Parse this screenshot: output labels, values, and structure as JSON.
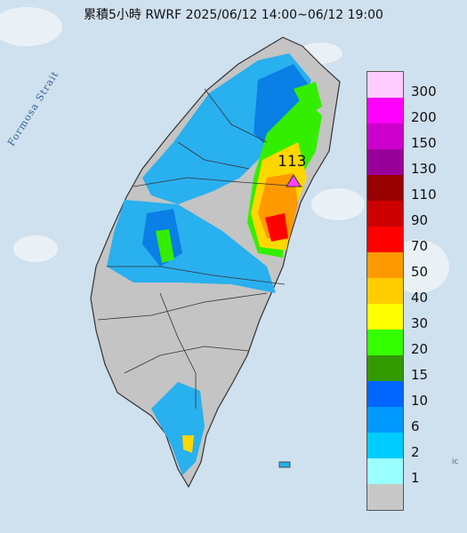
{
  "title": "累積5小時 RWRF 2025/06/12 14:00~06/12 19:00",
  "strait_label": "Formosa Strait",
  "max_station": {
    "value": "113",
    "marker_icon": "triangle-icon",
    "marker_color": "#ff44ff"
  },
  "edge_label": "ic",
  "legend": {
    "levels": [
      {
        "label": "300",
        "color": "#ffccff"
      },
      {
        "label": "200",
        "color": "#ff00ff"
      },
      {
        "label": "150",
        "color": "#cc00cc"
      },
      {
        "label": "130",
        "color": "#990099"
      },
      {
        "label": "110",
        "color": "#990000"
      },
      {
        "label": "90",
        "color": "#cc0000"
      },
      {
        "label": "70",
        "color": "#ff0000"
      },
      {
        "label": "50",
        "color": "#ff9900"
      },
      {
        "label": "40",
        "color": "#ffcc00"
      },
      {
        "label": "30",
        "color": "#ffff00"
      },
      {
        "label": "20",
        "color": "#33ff00"
      },
      {
        "label": "15",
        "color": "#339900"
      },
      {
        "label": "10",
        "color": "#0066ff"
      },
      {
        "label": "6",
        "color": "#0099ff"
      },
      {
        "label": "2",
        "color": "#00ccff"
      },
      {
        "label": "1",
        "color": "#99ffff"
      },
      {
        "label": "",
        "color": "#c8c8c8"
      }
    ]
  }
}
